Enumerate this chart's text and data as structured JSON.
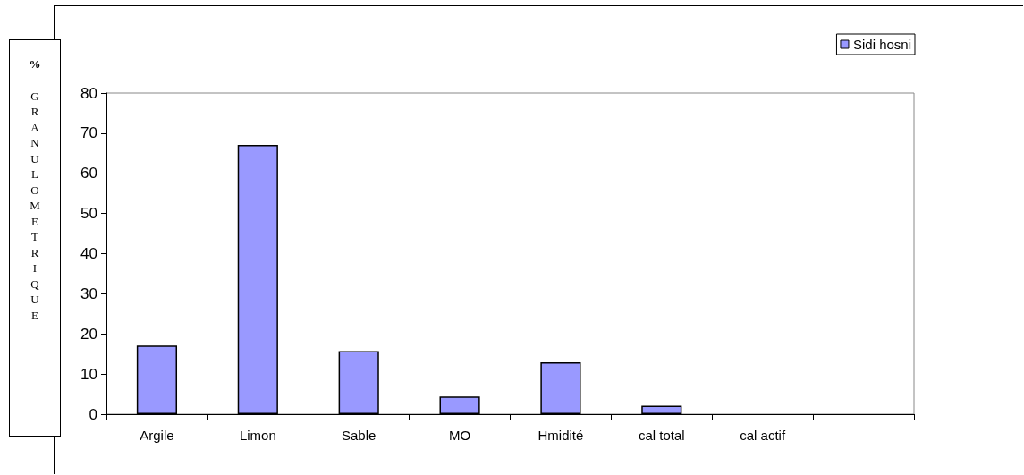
{
  "chart_data": {
    "type": "bar",
    "ylabel": "% GRANULOMETRIQUE",
    "categories": [
      "Argile",
      "Limon",
      "Sable",
      "MO",
      "Hmidité",
      "cal total",
      "cal actif",
      null
    ],
    "series": [
      {
        "name": "Sidi hosni",
        "color": "#9999ff",
        "values": [
          17.1,
          67.1,
          15.7,
          4.4,
          12.9,
          2.1,
          null,
          null
        ]
      }
    ],
    "ylim": [
      0,
      80
    ],
    "yticks": [
      0,
      10,
      20,
      30,
      40,
      50,
      60,
      70,
      80
    ],
    "grid": false,
    "legend": "top right"
  }
}
